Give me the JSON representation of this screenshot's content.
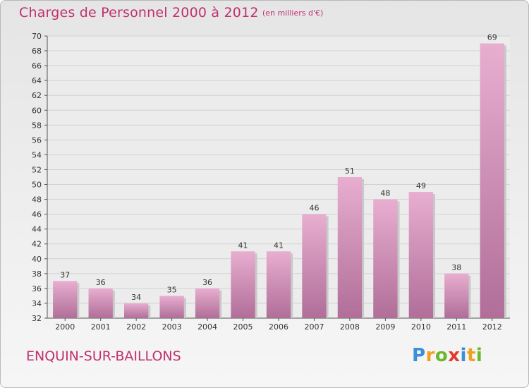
{
  "header": {
    "title": "Charges de Personnel 2000 à 2012",
    "unit": "(en milliers d'€)"
  },
  "footer": {
    "commune": "ENQUIN-SUR-BAILLONS",
    "logo_letters": [
      {
        "char": "P",
        "color": "#3b8fd8"
      },
      {
        "char": "r",
        "color": "#f0a020"
      },
      {
        "char": "o",
        "color": "#6ab82c"
      },
      {
        "char": "x",
        "color": "#e23b2e"
      },
      {
        "char": "i",
        "color": "#3b8fd8"
      },
      {
        "char": "t",
        "color": "#f0a020"
      },
      {
        "char": "i",
        "color": "#6ab82c"
      }
    ]
  },
  "colors": {
    "accent": "#c0306e",
    "bar_light": "#e8aed0",
    "bar_dark": "#b06e98"
  },
  "chart_data": {
    "type": "bar",
    "title": "Charges de Personnel 2000 à 2012",
    "subtitle": "(en milliers d'€)",
    "xlabel": "",
    "ylabel": "",
    "ylim": [
      32,
      70
    ],
    "yticks": [
      32,
      34,
      36,
      38,
      40,
      42,
      44,
      46,
      48,
      50,
      52,
      54,
      56,
      58,
      60,
      62,
      64,
      66,
      68,
      70
    ],
    "grid": true,
    "categories": [
      "2000",
      "2001",
      "2002",
      "2003",
      "2004",
      "2005",
      "2006",
      "2007",
      "2008",
      "2009",
      "2010",
      "2011",
      "2012"
    ],
    "values": [
      37,
      36,
      34,
      35,
      36,
      41,
      41,
      46,
      51,
      48,
      49,
      38,
      69
    ]
  }
}
